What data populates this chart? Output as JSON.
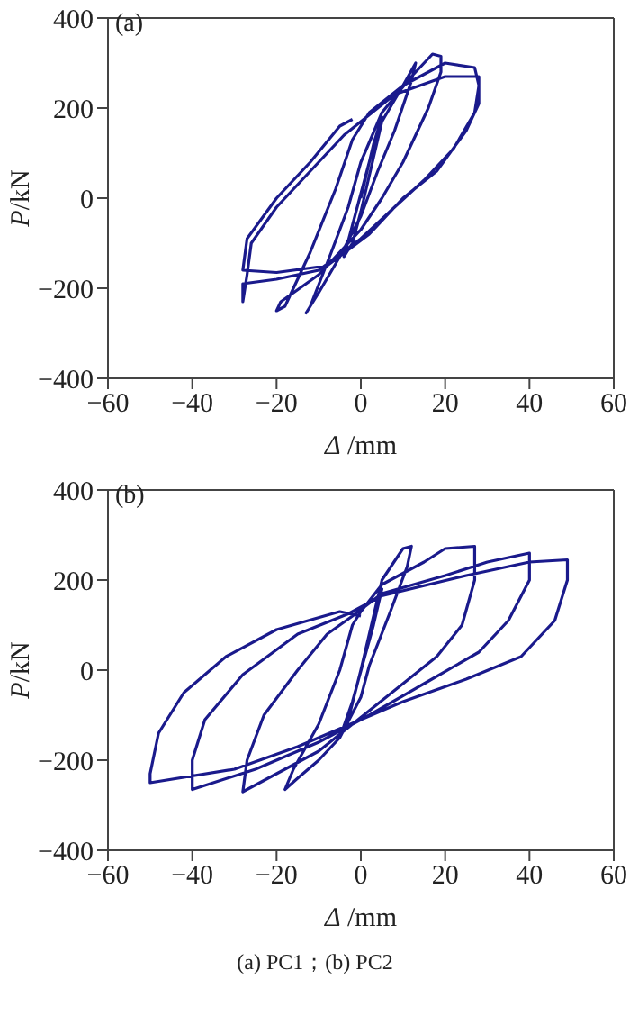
{
  "chart_data": [
    {
      "type": "line",
      "annotations": [
        "(a)"
      ],
      "xlabel": "Δ/mm",
      "ylabel": "P/kN",
      "xlim": [
        -60,
        60
      ],
      "xticks": [
        -60,
        -40,
        -20,
        0,
        20,
        40,
        60
      ],
      "ylim": [
        -400,
        400
      ],
      "yticks": [
        -400,
        -200,
        0,
        200,
        400
      ],
      "marker": "none",
      "line_style": "solid",
      "series": [
        {
          "color": "#1a1a8c",
          "x": [
            0,
            3,
            5,
            2,
            -2,
            -4,
            -2,
            0,
            5,
            10,
            13,
            12,
            8,
            4,
            0,
            -5,
            -10,
            -13,
            -12,
            -7,
            -3,
            0,
            5,
            12,
            17,
            19,
            19,
            16,
            10,
            5,
            0,
            -10,
            -19,
            -20,
            -18,
            -12,
            -6,
            -2,
            2,
            10,
            20,
            27,
            28,
            27,
            22,
            15,
            8,
            0,
            -10,
            -20,
            -28,
            -28,
            -27,
            -26,
            -20,
            -12,
            -4,
            0,
            8,
            20,
            28,
            28,
            25,
            18,
            10,
            2,
            -8,
            -20,
            -28,
            -27,
            -20,
            -12,
            -5,
            -2
          ],
          "values": [
            0,
            120,
            180,
            80,
            -60,
            -130,
            -100,
            -30,
            170,
            250,
            300,
            260,
            150,
            60,
            -40,
            -130,
            -210,
            -255,
            -240,
            -120,
            -20,
            80,
            190,
            270,
            320,
            315,
            280,
            200,
            80,
            0,
            -70,
            -170,
            -230,
            -250,
            -240,
            -120,
            20,
            130,
            190,
            250,
            300,
            290,
            250,
            190,
            110,
            40,
            -20,
            -90,
            -160,
            -180,
            -190,
            -230,
            -170,
            -100,
            -20,
            60,
            140,
            170,
            230,
            270,
            270,
            210,
            150,
            60,
            0,
            -80,
            -150,
            -165,
            -160,
            -90,
            0,
            80,
            160,
            175
          ]
        }
      ]
    },
    {
      "type": "line",
      "annotations": [
        "(b)",
        "(a) PC1；(b) PC2"
      ],
      "xlabel": "Δ/mm",
      "ylabel": "P/kN",
      "xlim": [
        -60,
        60
      ],
      "xticks": [
        -60,
        -40,
        -20,
        0,
        20,
        40,
        60
      ],
      "ylim": [
        -400,
        400
      ],
      "yticks": [
        -400,
        -200,
        0,
        200,
        400
      ],
      "marker": "none",
      "line_style": "solid",
      "series": [
        {
          "color": "#1a1a8c",
          "x": [
            0,
            3,
            5,
            3,
            -2,
            -5,
            -3,
            0,
            5,
            10,
            12,
            11,
            7,
            2,
            0,
            -5,
            -10,
            -15,
            -18,
            -16,
            -10,
            -5,
            -2,
            0,
            5,
            15,
            20,
            27,
            27,
            24,
            18,
            10,
            2,
            -10,
            -20,
            -28,
            -27,
            -23,
            -15,
            -8,
            -2,
            5,
            20,
            30,
            40,
            40,
            35,
            28,
            15,
            2,
            -10,
            -25,
            -40,
            -40,
            -37,
            -28,
            -15,
            -3,
            5,
            25,
            40,
            49,
            49,
            46,
            38,
            25,
            10,
            0,
            -15,
            -30,
            -50,
            -50,
            -48,
            -42,
            -32,
            -20,
            -5,
            0
          ],
          "values": [
            0,
            120,
            180,
            100,
            -70,
            -150,
            -110,
            0,
            200,
            270,
            275,
            230,
            130,
            10,
            -60,
            -150,
            -200,
            -240,
            -265,
            -220,
            -120,
            0,
            100,
            130,
            190,
            240,
            270,
            275,
            200,
            100,
            30,
            -30,
            -90,
            -180,
            -230,
            -270,
            -200,
            -100,
            0,
            80,
            120,
            170,
            210,
            240,
            260,
            200,
            110,
            40,
            -30,
            -100,
            -160,
            -220,
            -265,
            -200,
            -110,
            -10,
            80,
            125,
            165,
            210,
            240,
            245,
            200,
            110,
            30,
            -20,
            -70,
            -110,
            -170,
            -220,
            -250,
            -230,
            -140,
            -50,
            30,
            90,
            130,
            120
          ]
        }
      ]
    }
  ]
}
